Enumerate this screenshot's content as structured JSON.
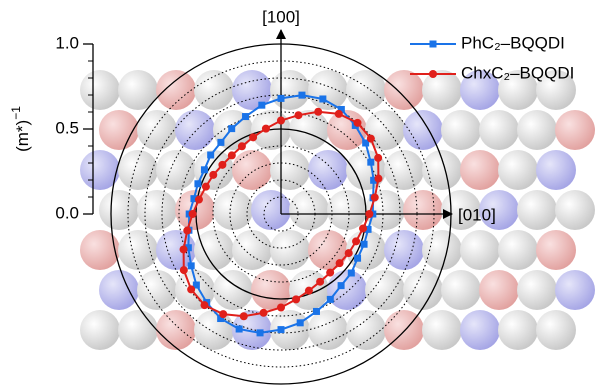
{
  "chart_data": {
    "type": "polar",
    "y_label": "(m*)",
    "y_label_sup": "−1",
    "axis_up_label": "[100]",
    "axis_right_label": "[010]",
    "theta": [
      0,
      10,
      20,
      30,
      40,
      50,
      60,
      70,
      80,
      90,
      100,
      110,
      120,
      130,
      140,
      150,
      160,
      170,
      180,
      190,
      200,
      210,
      220,
      230,
      240,
      250,
      260,
      270,
      280,
      290,
      300,
      310,
      320,
      330,
      340,
      350
    ],
    "rlim": [
      0,
      1.0
    ],
    "rticks": [
      {
        "value": 0,
        "label": "0.0"
      },
      {
        "value": 0.5,
        "label": "0.5"
      },
      {
        "value": 1.0,
        "label": "1.0"
      }
    ],
    "r_minor_ticks": [
      0.1,
      0.2,
      0.3,
      0.4,
      0.6,
      0.7,
      0.8,
      0.9
    ],
    "series": [
      {
        "name": "PhC₂–BQQDI",
        "color": "#1a73e8",
        "marker": "square",
        "values": [
          0.54,
          0.55,
          0.58,
          0.61,
          0.65,
          0.68,
          0.71,
          0.72,
          0.71,
          0.68,
          0.65,
          0.61,
          0.58,
          0.55,
          0.54,
          0.52,
          0.52,
          0.52,
          0.54,
          0.55,
          0.58,
          0.61,
          0.65,
          0.68,
          0.71,
          0.72,
          0.71,
          0.68,
          0.65,
          0.61,
          0.58,
          0.55,
          0.54,
          0.52,
          0.52,
          0.52
        ]
      },
      {
        "name": "ChxC₂–BQQDI",
        "color": "#e0201b",
        "marker": "circle",
        "values": [
          0.52,
          0.56,
          0.61,
          0.66,
          0.69,
          0.7,
          0.68,
          0.64,
          0.59,
          0.55,
          0.51,
          0.48,
          0.46,
          0.45,
          0.45,
          0.46,
          0.47,
          0.49,
          0.52,
          0.56,
          0.61,
          0.66,
          0.69,
          0.7,
          0.68,
          0.64,
          0.59,
          0.55,
          0.51,
          0.48,
          0.46,
          0.45,
          0.45,
          0.46,
          0.47,
          0.49
        ]
      }
    ]
  }
}
